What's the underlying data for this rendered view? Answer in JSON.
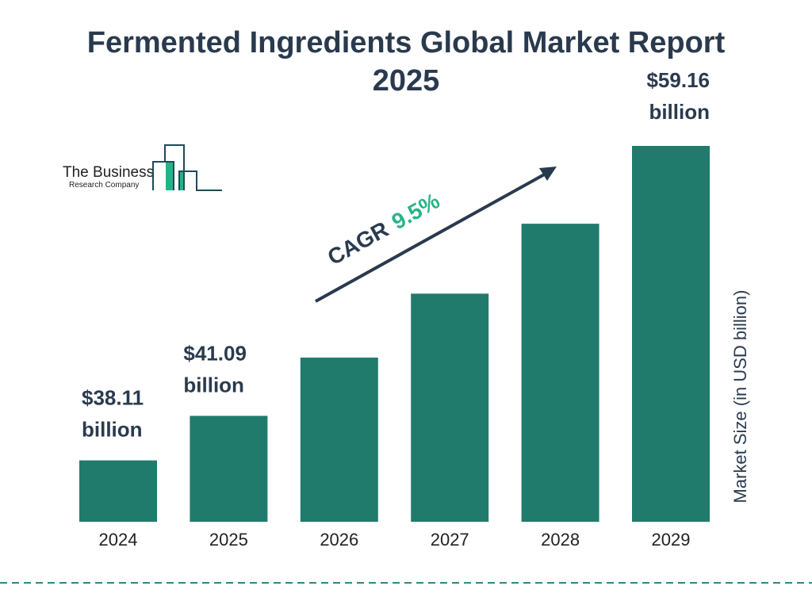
{
  "chart_data": {
    "type": "bar",
    "title": "Fermented Ingredients Global Market Report 2025",
    "title_lines": [
      "Fermented Ingredients Global Market Report",
      "2025"
    ],
    "categories": [
      "2024",
      "2025",
      "2026",
      "2027",
      "2028",
      "2029"
    ],
    "values": [
      38.11,
      41.09,
      44.99,
      49.27,
      53.95,
      59.16
    ],
    "data_labels": [
      {
        "index": 0,
        "lines": [
          "$38.11",
          "billion"
        ]
      },
      {
        "index": 1,
        "lines": [
          "$41.09",
          "billion"
        ]
      },
      {
        "index": 5,
        "lines": [
          "$59.16",
          "billion"
        ]
      }
    ],
    "xlabel": "",
    "ylabel": "Market Size (in USD billion)",
    "annotation": {
      "prefix": "CAGR",
      "value": "9.5%"
    },
    "grid": false,
    "legend": "none",
    "colors": {
      "bar": "#217b6c",
      "text": "#2a3a4e",
      "cagr_value": "#2bb38a",
      "divider": "#2a8a82"
    }
  },
  "logo": {
    "line1": "The Business",
    "line2": "Research Company",
    "colors": {
      "outline": "#1f4a5a",
      "fill": "#22b487"
    }
  }
}
